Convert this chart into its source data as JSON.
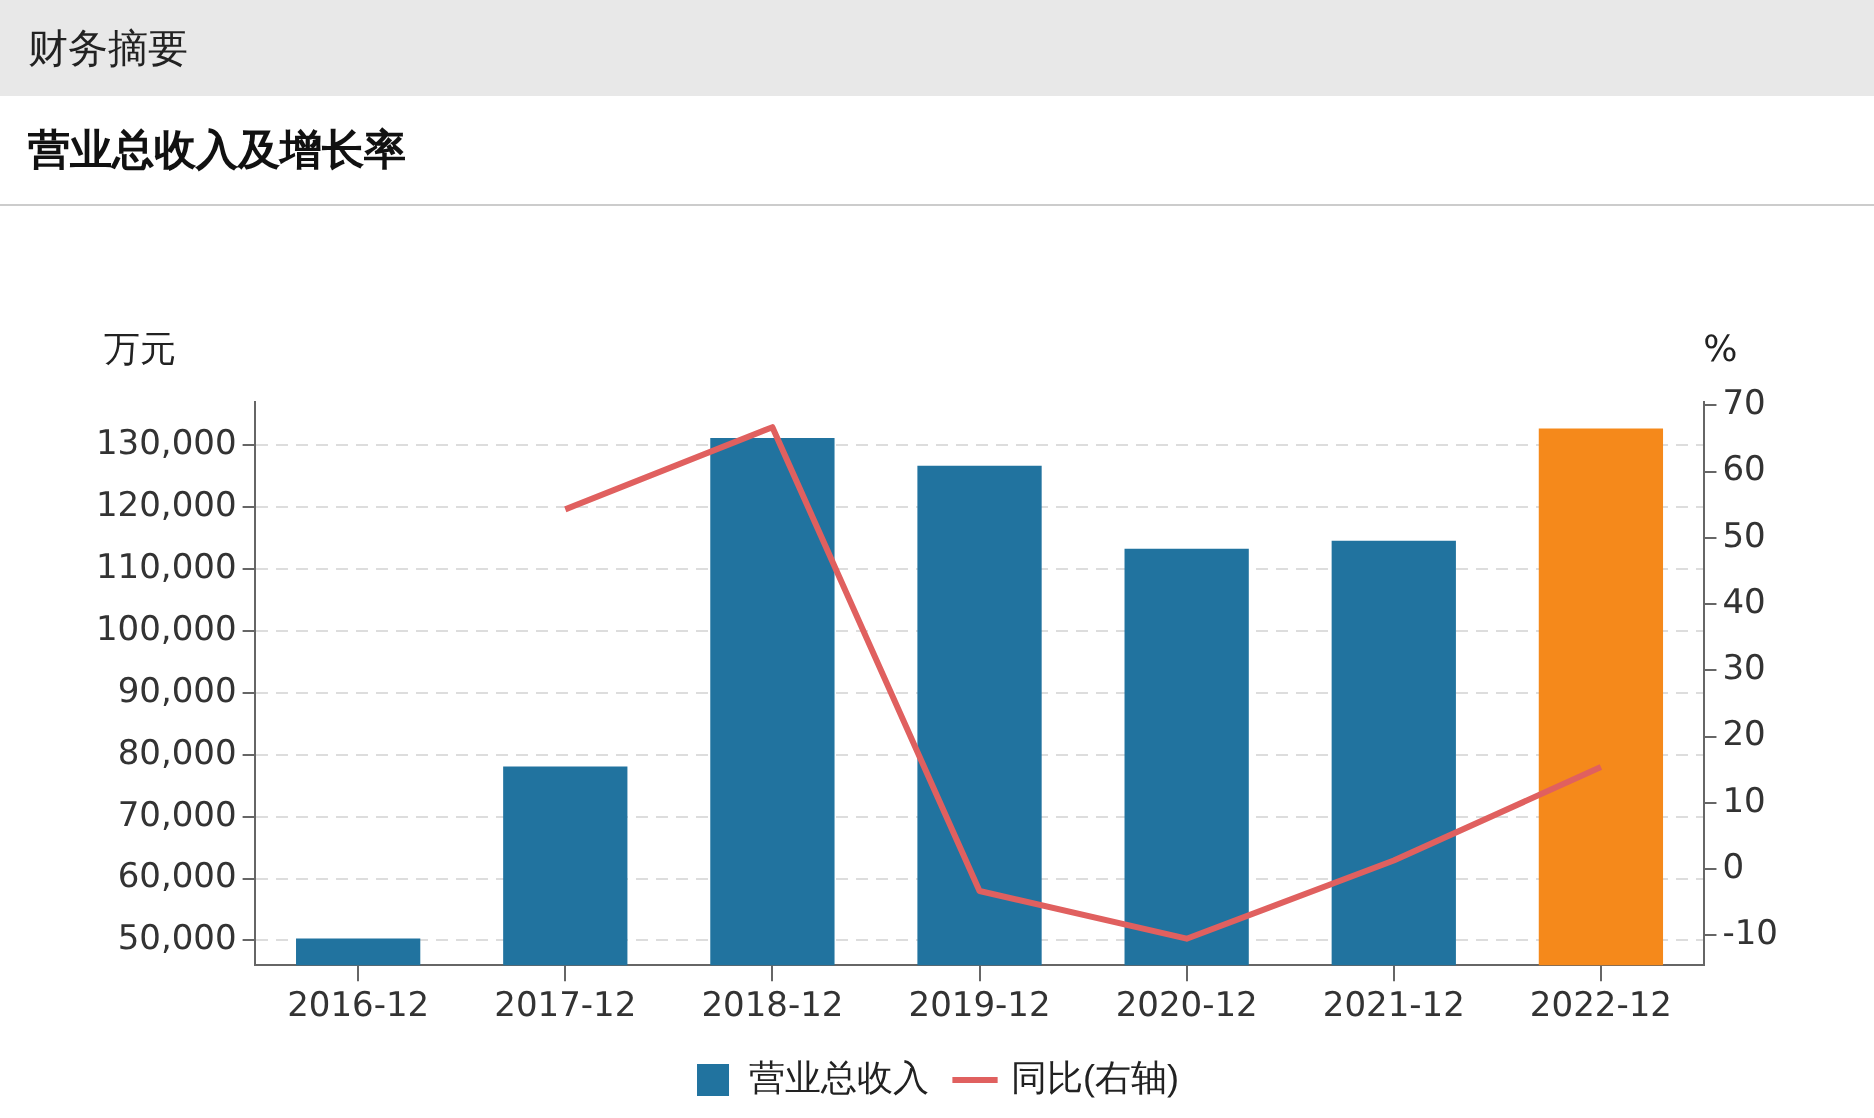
{
  "chart_data": {
    "type": "bar",
    "title": "营业总收入及增长率",
    "subtitle": "财务摘要",
    "ylabel": "万元",
    "y2label": "%",
    "categories": [
      "2016-12",
      "2017-12",
      "2018-12",
      "2019-12",
      "2020-12",
      "2021-12",
      "2022-12"
    ],
    "series": [
      {
        "name": "营业总收入",
        "color": "#21739f",
        "colors": [
          "#21739f",
          "#21739f",
          "#21739f",
          "#21739f",
          "#21739f",
          "#21739f",
          "#f5891b"
        ],
        "values": [
          50300,
          78100,
          131200,
          126700,
          113300,
          114600,
          132700
        ]
      },
      {
        "name": "同比(右轴)",
        "type": "line",
        "axis": "y2",
        "color": "#e0605f",
        "values": [
          null,
          54.3,
          66.7,
          -3.3,
          -10.5,
          1.3,
          15.4
        ]
      }
    ],
    "ylim": [
      46000,
      137000
    ],
    "yticks": [
      {
        "value": 50000,
        "label": "50,000"
      },
      {
        "value": 60000,
        "label": "60,000"
      },
      {
        "value": 70000,
        "label": "70,000"
      },
      {
        "value": 80000,
        "label": "80,000"
      },
      {
        "value": 90000,
        "label": "90,000"
      },
      {
        "value": 100000,
        "label": "100,000"
      },
      {
        "value": 110000,
        "label": "110,000"
      },
      {
        "value": 120000,
        "label": "120,000"
      },
      {
        "value": 130000,
        "label": "130,000"
      }
    ],
    "y2lim": [
      -14.5,
      70.5
    ],
    "y2ticks": [
      -10,
      0,
      10,
      20,
      30,
      40,
      50,
      60,
      70
    ],
    "grid": "y",
    "legend": "bottom",
    "marker": "none",
    "line_style": "solid"
  }
}
